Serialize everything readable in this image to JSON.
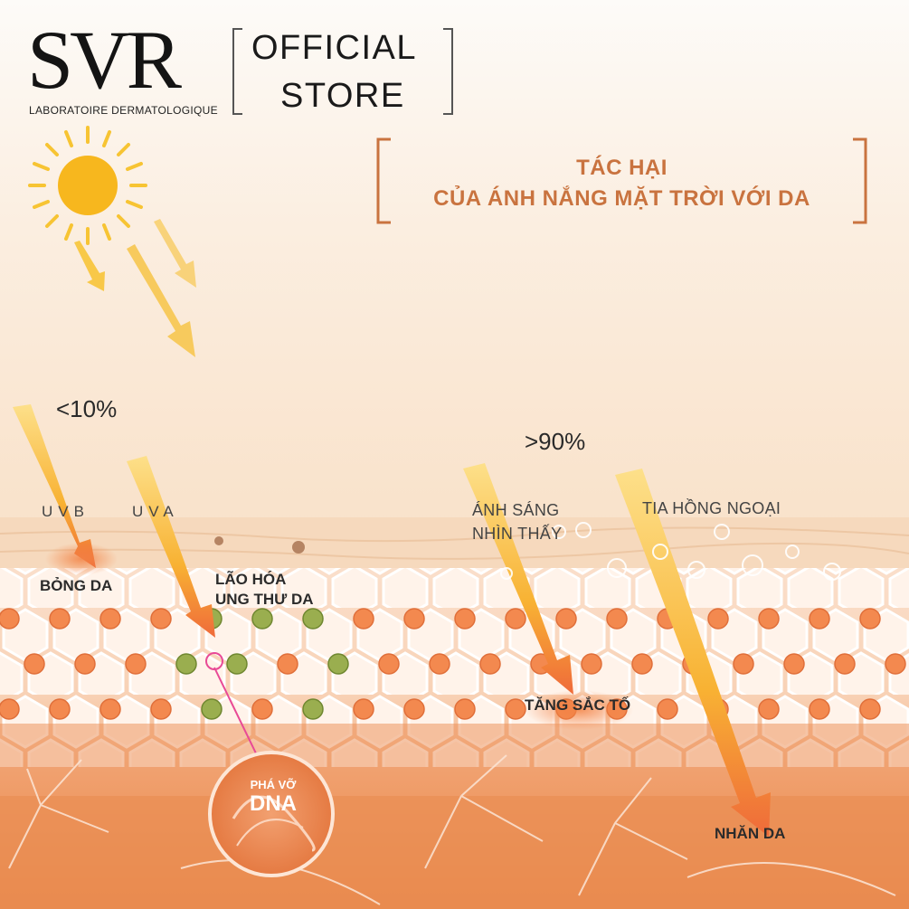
{
  "brand": {
    "logo_text": "SVR",
    "subtitle": "LABORATOIRE DERMATOLOGIQUE",
    "store_line1": "OFFICIAL",
    "store_line2": "STORE"
  },
  "title": {
    "line1": "TÁC HẠI",
    "line2": "CỦA ÁNH NẮNG MẶT TRỜI VỚI DA"
  },
  "rays": {
    "uv_percent": "<10%",
    "visible_ir_percent": ">90%",
    "uvb": "UVB",
    "uva": "UVA",
    "visible_line1": "ÁNH SÁNG",
    "visible_line2": "NHÌN THẤY",
    "infrared": "TIA HỒNG NGOẠI"
  },
  "effects": {
    "burn": "BỎNG DA",
    "aging_line1": "LÃO HÓA",
    "aging_line2": "UNG THƯ DA",
    "dna_line1": "PHÁ VỠ",
    "dna_line2": "DNA",
    "pigment": "TĂNG SẮC TỐ",
    "wrinkle": "NHĂN DA"
  },
  "colors": {
    "accent": "#c9733f",
    "skin_deep": "#e8874a",
    "cell_core": "#f3894f",
    "damaged_cell": "#9aae4f",
    "sun": "#f7b71e",
    "arrow_tip": "#e94b3c"
  }
}
